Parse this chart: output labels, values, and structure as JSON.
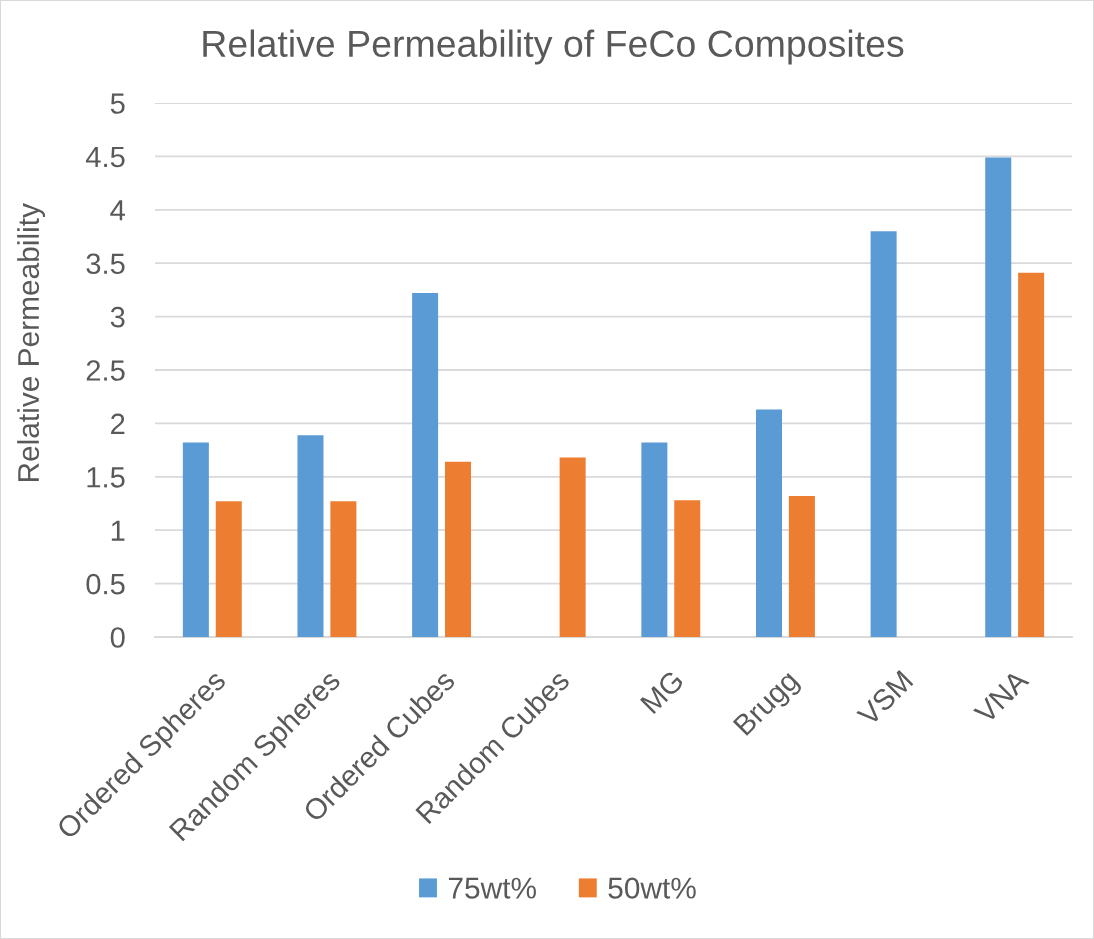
{
  "chart_data": {
    "type": "bar",
    "title": "Relative Permeability of FeCo Composites",
    "ylabel": "Relative Permeability",
    "categories": [
      "Ordered Spheres",
      "Random Spheres",
      "Ordered Cubes",
      "Random Cubes",
      "MG",
      "Brugg",
      "VSM",
      "VNA"
    ],
    "series": [
      {
        "name": "75wt%",
        "color": "#5b9bd5",
        "values": [
          1.82,
          1.89,
          3.22,
          null,
          1.82,
          2.13,
          3.8,
          4.49
        ]
      },
      {
        "name": "50wt%",
        "color": "#ed7d31",
        "values": [
          1.27,
          1.27,
          1.64,
          1.68,
          1.28,
          1.32,
          null,
          3.41
        ]
      }
    ],
    "ylim": [
      0,
      5
    ],
    "yticks": [
      0,
      0.5,
      1,
      1.5,
      2,
      2.5,
      3,
      3.5,
      4,
      4.5,
      5
    ],
    "grid": "y",
    "legend": "bottom"
  }
}
